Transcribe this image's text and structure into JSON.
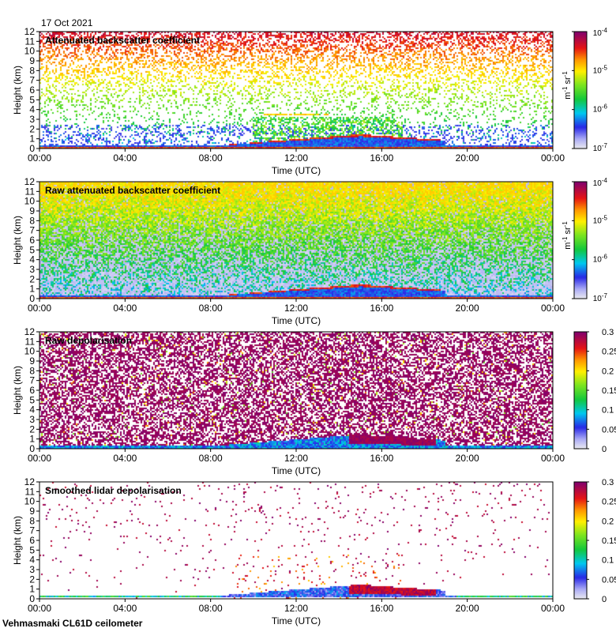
{
  "date_label": "17 Oct 2021",
  "footer_label": "Vehmasmaki CL61D ceilometer",
  "chart_data": [
    {
      "type": "heatmap",
      "title": "Attenuated backscatter coefficient",
      "xlabel": "Time (UTC)",
      "ylabel": "Height (km)",
      "x_ticks": [
        "00:00",
        "04:00",
        "08:00",
        "12:00",
        "16:00",
        "20:00",
        "00:00"
      ],
      "xlim_hours": [
        0,
        24
      ],
      "y_ticks": [
        0,
        1,
        2,
        3,
        4,
        5,
        6,
        7,
        8,
        9,
        10,
        11,
        12
      ],
      "ylim_km": [
        0,
        12
      ],
      "colorbar": {
        "scale": "log",
        "range": [
          1e-07,
          0.0001
        ],
        "tick_mantissa": [
          "10",
          "10",
          "10",
          "10"
        ],
        "tick_exponents": [
          "-7",
          "-6",
          "-5",
          "-4"
        ],
        "unit_base": [
          "m",
          "sr"
        ],
        "unit_exponents": [
          "-1",
          "-1"
        ]
      },
      "pattern": "attenuated"
    },
    {
      "type": "heatmap",
      "title": "Raw attenuated backscatter coefficient",
      "xlabel": "Time (UTC)",
      "ylabel": "Height (km)",
      "x_ticks": [
        "00:00",
        "04:00",
        "08:00",
        "12:00",
        "16:00",
        "20:00",
        "00:00"
      ],
      "xlim_hours": [
        0,
        24
      ],
      "y_ticks": [
        0,
        1,
        2,
        3,
        4,
        5,
        6,
        7,
        8,
        9,
        10,
        11,
        12
      ],
      "ylim_km": [
        0,
        12
      ],
      "colorbar": {
        "scale": "log",
        "range": [
          1e-07,
          0.0001
        ],
        "tick_mantissa": [
          "10",
          "10",
          "10",
          "10"
        ],
        "tick_exponents": [
          "-7",
          "-6",
          "-5",
          "-4"
        ],
        "unit_base": [
          "m",
          "sr"
        ],
        "unit_exponents": [
          "-1",
          "-1"
        ]
      },
      "pattern": "raw_backscatter"
    },
    {
      "type": "heatmap",
      "title": "Raw depolarisation",
      "xlabel": "Time (UTC)",
      "ylabel": "Height (km)",
      "x_ticks": [
        "00:00",
        "04:00",
        "08:00",
        "12:00",
        "16:00",
        "20:00",
        "00:00"
      ],
      "xlim_hours": [
        0,
        24
      ],
      "y_ticks": [
        0,
        1,
        2,
        3,
        4,
        5,
        6,
        7,
        8,
        9,
        10,
        11,
        12
      ],
      "ylim_km": [
        0,
        12
      ],
      "colorbar": {
        "scale": "linear",
        "range": [
          0,
          0.3
        ],
        "ticks": [
          "0",
          "0.05",
          "0.1",
          "0.15",
          "0.2",
          "0.25",
          "0.3"
        ]
      },
      "pattern": "raw_depol"
    },
    {
      "type": "heatmap",
      "title": "Smoothed lidar depolarisation",
      "xlabel": "Time (UTC)",
      "ylabel": "Height (km)",
      "x_ticks": [
        "00:00",
        "04:00",
        "08:00",
        "12:00",
        "16:00",
        "20:00",
        "00:00"
      ],
      "xlim_hours": [
        0,
        24
      ],
      "y_ticks": [
        0,
        1,
        2,
        3,
        4,
        5,
        6,
        7,
        8,
        9,
        10,
        11,
        12
      ],
      "ylim_km": [
        0,
        12
      ],
      "colorbar": {
        "scale": "linear",
        "range": [
          0,
          0.3
        ],
        "ticks": [
          "0",
          "0.05",
          "0.1",
          "0.15",
          "0.2",
          "0.25",
          "0.3"
        ]
      },
      "pattern": "smoothed_depol"
    }
  ]
}
